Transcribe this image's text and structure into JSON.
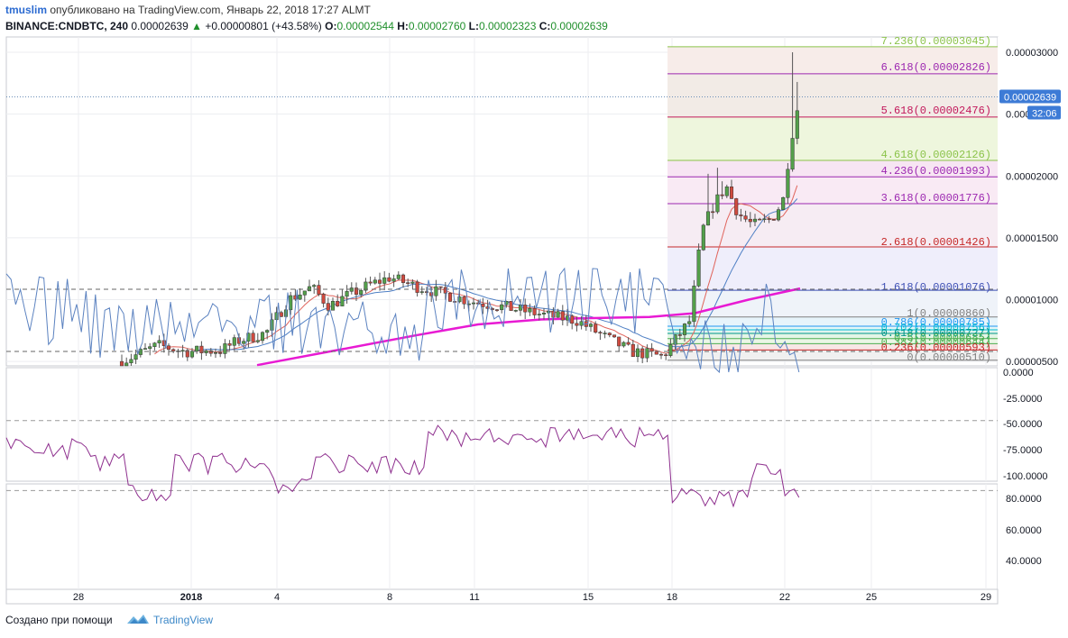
{
  "header": {
    "user": "tmuslim",
    "published": "опубликовано на TradingView.com, Январь 22, 2018 17:27 ALMT",
    "symbol": "BINANCE:CNDBTC, 240",
    "price": "0.00002639",
    "change": "+0.00000801 (+43.58%)",
    "ohlc": {
      "o_label": "O:",
      "o": "0.00002544",
      "h_label": "H:",
      "h": "0.00002760",
      "l_label": "L:",
      "l": "0.00002323",
      "c_label": "C:",
      "c": "0.00002639"
    }
  },
  "price_axis": {
    "ticks": [
      {
        "label": "0.00003000",
        "value": 3e-05
      },
      {
        "label": "0.000",
        "value": 2.5e-05
      },
      {
        "label": "0.00002000",
        "value": 2e-05
      },
      {
        "label": "0.00001500",
        "value": 1.5e-05
      },
      {
        "label": "0.00001000",
        "value": 1e-05
      },
      {
        "label": "0.00000500",
        "value": 5e-06
      }
    ],
    "last_price": "0.00002639",
    "countdown": "32:06"
  },
  "fib_levels": [
    {
      "label": "7.236(0.00003045)",
      "color": "#8bc34a"
    },
    {
      "label": "6.618(0.00002826)",
      "color": "#9c27b0"
    },
    {
      "label": "5.618(0.00002476)",
      "color": "#c2185b"
    },
    {
      "label": "4.618(0.00002126)",
      "color": "#8bc34a"
    },
    {
      "label": "4.236(0.00001993)",
      "color": "#9c27b0"
    },
    {
      "label": "3.618(0.00001776)",
      "color": "#9c27b0"
    },
    {
      "label": "2.618(0.00001426)",
      "color": "#c62828"
    },
    {
      "label": "1.618(0.00001076)",
      "color": "#3f51b5"
    },
    {
      "label": "1(0.00000860)",
      "color": "#808080"
    },
    {
      "label": "0.786(0.00000785)",
      "color": "#2196f3"
    },
    {
      "label": "0.702(0.00000756)",
      "color": "#00bcd4"
    },
    {
      "label": "0.618(0.00000727)",
      "color": "#009688"
    },
    {
      "label": "0.5(0.00000685)",
      "color": "#4caf50"
    },
    {
      "label": "0.382(0.00000644)",
      "color": "#4caf50"
    },
    {
      "label": "0.236(0.00000593)",
      "color": "#c62828"
    },
    {
      "label": "0(0.00000510)",
      "color": "#808080"
    }
  ],
  "wr_axis": [
    "0.0000",
    "-25.0000",
    "-50.0000",
    "-75.0000",
    "-100.0000"
  ],
  "rsi_axis": [
    "80.0000",
    "60.0000",
    "40.0000"
  ],
  "time_axis": [
    "28",
    "2018",
    "4",
    "8",
    "11",
    "15",
    "18",
    "22",
    "25",
    "29"
  ],
  "colors": {
    "up": "#53a04a",
    "down": "#d04a3f",
    "ma_fast": "#e0645c",
    "ma_slow": "#4e7fc4",
    "ma_long": "#e81ad3",
    "wr_line": "#5b82c0",
    "rsi_line": "#8e2f8e",
    "band_fill": "#efe0fb",
    "accent": "#2c6bd1"
  },
  "footer": {
    "created_with": "Создано при помощи",
    "brand": "TradingView"
  }
}
